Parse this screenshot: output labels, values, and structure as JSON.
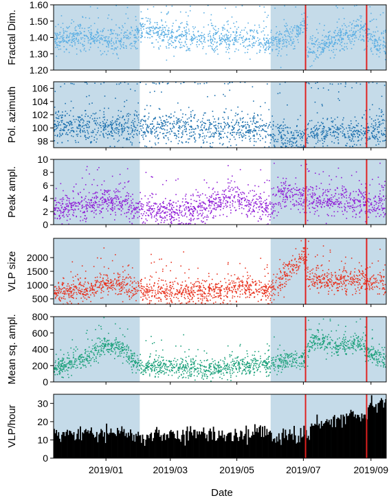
{
  "chart_data": {
    "type": "multi-panel",
    "xlabel": "Date",
    "x_ticks": [
      "2019/01",
      "2019/03",
      "2019/05",
      "2019/07",
      "2019/09"
    ],
    "x_tick_dates": [
      "2019-01-01",
      "2019-03-01",
      "2019-05-01",
      "2019-07-01",
      "2019-09-01"
    ],
    "x_range": [
      "2018-11-14",
      "2019-09-15"
    ],
    "shaded_intervals": [
      {
        "start": "2018-11-14",
        "end": "2019-02-01",
        "color": "#c5dbe9"
      },
      {
        "start": "2019-06-01",
        "end": "2019-09-15",
        "color": "#c5dbe9"
      }
    ],
    "event_lines": {
      "dates": [
        "2019-07-03",
        "2019-08-28"
      ],
      "color": "#e0211f"
    },
    "panels": [
      {
        "ylabel": "Fractal Dim.",
        "ylim": [
          1.2,
          1.6
        ],
        "yticks": [
          "1.20",
          "1.30",
          "1.40",
          "1.50",
          "1.60"
        ],
        "ytick_values": [
          1.2,
          1.3,
          1.4,
          1.5,
          1.6
        ],
        "style": "scatter",
        "color": "#5aaee3",
        "series_points": [
          [
            "2018-11-14",
            1.39
          ],
          [
            "2018-12-01",
            1.4
          ],
          [
            "2018-12-15",
            1.4
          ],
          [
            "2019-01-01",
            1.39
          ],
          [
            "2019-01-15",
            1.38
          ],
          [
            "2019-01-28",
            1.4
          ],
          [
            "2019-02-04",
            1.47
          ],
          [
            "2019-02-12",
            1.43
          ],
          [
            "2019-03-01",
            1.41
          ],
          [
            "2019-03-20",
            1.4
          ],
          [
            "2019-04-10",
            1.4
          ],
          [
            "2019-05-01",
            1.39
          ],
          [
            "2019-05-20",
            1.38
          ],
          [
            "2019-06-01",
            1.37
          ],
          [
            "2019-06-10",
            1.38
          ],
          [
            "2019-06-20",
            1.42
          ],
          [
            "2019-07-02",
            1.47
          ],
          [
            "2019-07-05",
            1.33
          ],
          [
            "2019-07-20",
            1.35
          ],
          [
            "2019-08-05",
            1.4
          ],
          [
            "2019-08-20",
            1.44
          ],
          [
            "2019-08-28",
            1.42
          ],
          [
            "2019-09-05",
            1.36
          ],
          [
            "2019-09-15",
            1.35
          ]
        ],
        "spread": 0.04
      },
      {
        "ylabel": "Pol. azimuth",
        "ylim": [
          97,
          107
        ],
        "yticks": [
          "98",
          "100",
          "102",
          "104",
          "106"
        ],
        "ytick_values": [
          98,
          100,
          102,
          104,
          106
        ],
        "style": "scatter",
        "color": "#1a6fad",
        "series_points": [
          [
            "2018-11-14",
            100.5
          ],
          [
            "2019-01-01",
            100.3
          ],
          [
            "2019-02-01",
            100.2
          ],
          [
            "2019-04-01",
            100.0
          ],
          [
            "2019-05-31",
            99.8
          ],
          [
            "2019-06-02",
            98.8
          ],
          [
            "2019-07-03",
            98.2
          ],
          [
            "2019-07-06",
            99.6
          ],
          [
            "2019-08-15",
            99.4
          ],
          [
            "2019-09-15",
            99.8
          ]
        ],
        "spread": 1.2
      },
      {
        "ylabel": "Peak ampl.",
        "ylim": [
          0,
          10
        ],
        "yticks": [
          "0",
          "2",
          "4",
          "6",
          "8",
          "10"
        ],
        "ytick_values": [
          0,
          2,
          4,
          6,
          8,
          10
        ],
        "style": "scatter",
        "color": "#8f1bd6",
        "series_points": [
          [
            "2018-11-14",
            2.5
          ],
          [
            "2018-12-15",
            2.8
          ],
          [
            "2019-01-01",
            3.8
          ],
          [
            "2019-01-15",
            3.4
          ],
          [
            "2019-02-01",
            2.2
          ],
          [
            "2019-03-01",
            1.8
          ],
          [
            "2019-04-01",
            2.6
          ],
          [
            "2019-04-25",
            4.2
          ],
          [
            "2019-05-15",
            3.0
          ],
          [
            "2019-05-31",
            2.6
          ],
          [
            "2019-06-10",
            4.8
          ],
          [
            "2019-07-01",
            4.2
          ],
          [
            "2019-07-20",
            3.6
          ],
          [
            "2019-08-15",
            3.6
          ],
          [
            "2019-09-15",
            3.2
          ]
        ],
        "spread": 1.1
      },
      {
        "ylabel": "VLP size",
        "ylim": [
          300,
          2700
        ],
        "yticks": [
          "500",
          "1000",
          "1500",
          "2000"
        ],
        "ytick_values": [
          500,
          1000,
          1500,
          2000
        ],
        "style": "scatter",
        "color": "#e8321e",
        "series_points": [
          [
            "2018-11-14",
            700
          ],
          [
            "2018-12-15",
            850
          ],
          [
            "2019-01-05",
            1150
          ],
          [
            "2019-01-25",
            950
          ],
          [
            "2019-02-10",
            750
          ],
          [
            "2019-03-15",
            700
          ],
          [
            "2019-04-20",
            800
          ],
          [
            "2019-05-10",
            950
          ],
          [
            "2019-05-31",
            800
          ],
          [
            "2019-06-15",
            1400
          ],
          [
            "2019-07-01",
            2100
          ],
          [
            "2019-07-05",
            1300
          ],
          [
            "2019-07-25",
            1100
          ],
          [
            "2019-08-15",
            1200
          ],
          [
            "2019-09-15",
            1050
          ]
        ],
        "spread": 220
      },
      {
        "ylabel": "Mean sq. ampl.",
        "ylim": [
          0,
          800
        ],
        "yticks": [
          "0",
          "200",
          "400",
          "600",
          "800"
        ],
        "ytick_values": [
          0,
          200,
          400,
          600,
          800
        ],
        "style": "scatter",
        "color": "#1aa07a",
        "series_points": [
          [
            "2018-11-14",
            170
          ],
          [
            "2018-12-10",
            260
          ],
          [
            "2019-01-01",
            470
          ],
          [
            "2019-01-15",
            420
          ],
          [
            "2019-02-01",
            190
          ],
          [
            "2019-03-01",
            180
          ],
          [
            "2019-04-01",
            150
          ],
          [
            "2019-05-01",
            200
          ],
          [
            "2019-06-01",
            220
          ],
          [
            "2019-07-01",
            300
          ],
          [
            "2019-07-10",
            520
          ],
          [
            "2019-08-01",
            420
          ],
          [
            "2019-08-20",
            500
          ],
          [
            "2019-09-01",
            350
          ],
          [
            "2019-09-15",
            260
          ]
        ],
        "spread": 60
      },
      {
        "ylabel": "VLP/hour",
        "ylim": [
          0,
          35
        ],
        "yticks": [
          "0",
          "10",
          "20",
          "30"
        ],
        "ytick_values": [
          0,
          10,
          20,
          30
        ],
        "style": "bar",
        "color": "#000000",
        "series_points": [
          [
            "2018-11-14",
            13
          ],
          [
            "2019-01-01",
            14
          ],
          [
            "2019-02-01",
            12
          ],
          [
            "2019-03-15",
            13
          ],
          [
            "2019-05-01",
            13
          ],
          [
            "2019-05-25",
            15
          ],
          [
            "2019-06-05",
            11
          ],
          [
            "2019-07-01",
            13
          ],
          [
            "2019-07-10",
            17
          ],
          [
            "2019-08-01",
            22
          ],
          [
            "2019-08-27",
            25
          ],
          [
            "2019-08-29",
            30
          ],
          [
            "2019-09-15",
            31
          ]
        ],
        "spread": 2.5
      }
    ]
  }
}
